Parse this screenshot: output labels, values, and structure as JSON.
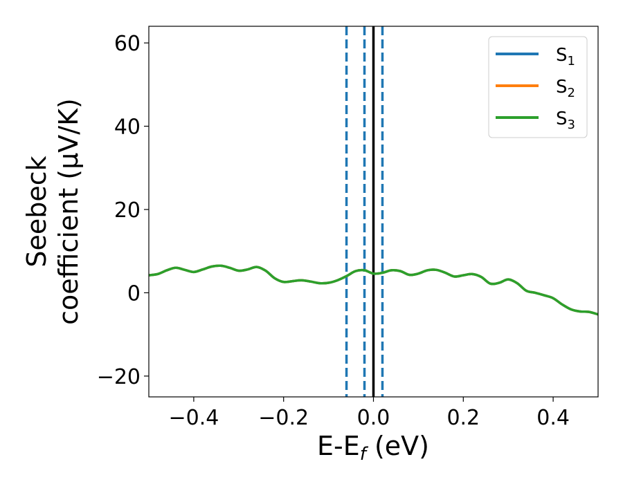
{
  "chart_data": {
    "type": "line",
    "xlabel": {
      "main": "E-E",
      "sub": "f",
      "unit": " (eV)"
    },
    "ylabel": {
      "line1": "Seebeck",
      "line2": "coefficient  (μV/K)"
    },
    "xlim": [
      -0.5,
      0.5
    ],
    "ylim": [
      -25,
      64
    ],
    "xticks": [
      -0.4,
      -0.2,
      0.0,
      0.2,
      0.4
    ],
    "xtick_labels": [
      "−0.4",
      "−0.2",
      "0.0",
      "0.2",
      "0.4"
    ],
    "yticks": [
      -20,
      0,
      20,
      40,
      60
    ],
    "ytick_labels": [
      "−20",
      "0",
      "20",
      "40",
      "60"
    ],
    "grid": false,
    "legend_position": "top-right",
    "vlines": [
      {
        "x": -0.06,
        "style": "dashed",
        "color": "#1f77b4"
      },
      {
        "x": -0.02,
        "style": "dashed",
        "color": "#1f77b4"
      },
      {
        "x": 0.02,
        "style": "dashed",
        "color": "#1f77b4"
      },
      {
        "x": 0.0,
        "style": "solid",
        "color": "#000000"
      }
    ],
    "x": [
      -0.5,
      -0.48,
      -0.46,
      -0.44,
      -0.42,
      -0.4,
      -0.38,
      -0.36,
      -0.34,
      -0.32,
      -0.3,
      -0.28,
      -0.26,
      -0.24,
      -0.22,
      -0.2,
      -0.18,
      -0.16,
      -0.14,
      -0.12,
      -0.1,
      -0.08,
      -0.06,
      -0.04,
      -0.02,
      0.0,
      0.02,
      0.04,
      0.06,
      0.08,
      0.1,
      0.12,
      0.14,
      0.16,
      0.18,
      0.2,
      0.22,
      0.24,
      0.26,
      0.28,
      0.3,
      0.32,
      0.34,
      0.36,
      0.38,
      0.4,
      0.42,
      0.44,
      0.46,
      0.48,
      0.5
    ],
    "series": [
      {
        "name": "S",
        "sub": "1",
        "color": "#1f77b4",
        "values": [
          4.2,
          4.5,
          5.4,
          6.0,
          5.5,
          5.0,
          5.6,
          6.3,
          6.5,
          6.0,
          5.3,
          5.6,
          6.2,
          5.3,
          3.5,
          2.6,
          2.8,
          3.0,
          2.7,
          2.3,
          2.4,
          3.0,
          4.0,
          5.2,
          5.4,
          4.6,
          4.8,
          5.4,
          5.2,
          4.3,
          4.6,
          5.4,
          5.5,
          4.8,
          3.9,
          4.2,
          4.5,
          3.8,
          2.2,
          2.4,
          3.2,
          2.3,
          0.5,
          0.0,
          -0.6,
          -1.3,
          -2.8,
          -4.0,
          -4.5,
          -4.6,
          -5.2
        ]
      },
      {
        "name": "S",
        "sub": "2",
        "color": "#ff7f0e",
        "values": [
          4.2,
          4.5,
          5.4,
          6.0,
          5.5,
          5.0,
          5.6,
          6.3,
          6.5,
          6.0,
          5.3,
          5.6,
          6.2,
          5.3,
          3.5,
          2.6,
          2.8,
          3.0,
          2.7,
          2.3,
          2.4,
          3.0,
          4.0,
          5.2,
          5.4,
          4.6,
          4.8,
          5.4,
          5.2,
          4.3,
          4.6,
          5.4,
          5.5,
          4.8,
          3.9,
          4.2,
          4.5,
          3.8,
          2.2,
          2.4,
          3.2,
          2.3,
          0.5,
          0.0,
          -0.6,
          -1.3,
          -2.8,
          -4.0,
          -4.5,
          -4.6,
          -5.2
        ]
      },
      {
        "name": "S",
        "sub": "3",
        "color": "#2ca02c",
        "values": [
          4.2,
          4.5,
          5.4,
          6.0,
          5.5,
          5.0,
          5.6,
          6.3,
          6.5,
          6.0,
          5.3,
          5.6,
          6.2,
          5.3,
          3.5,
          2.6,
          2.8,
          3.0,
          2.7,
          2.3,
          2.4,
          3.0,
          4.0,
          5.2,
          5.4,
          4.6,
          4.8,
          5.4,
          5.2,
          4.3,
          4.6,
          5.4,
          5.5,
          4.8,
          3.9,
          4.2,
          4.5,
          3.8,
          2.2,
          2.4,
          3.2,
          2.3,
          0.5,
          0.0,
          -0.6,
          -1.3,
          -2.8,
          -4.0,
          -4.5,
          -4.6,
          -5.2
        ]
      }
    ]
  }
}
